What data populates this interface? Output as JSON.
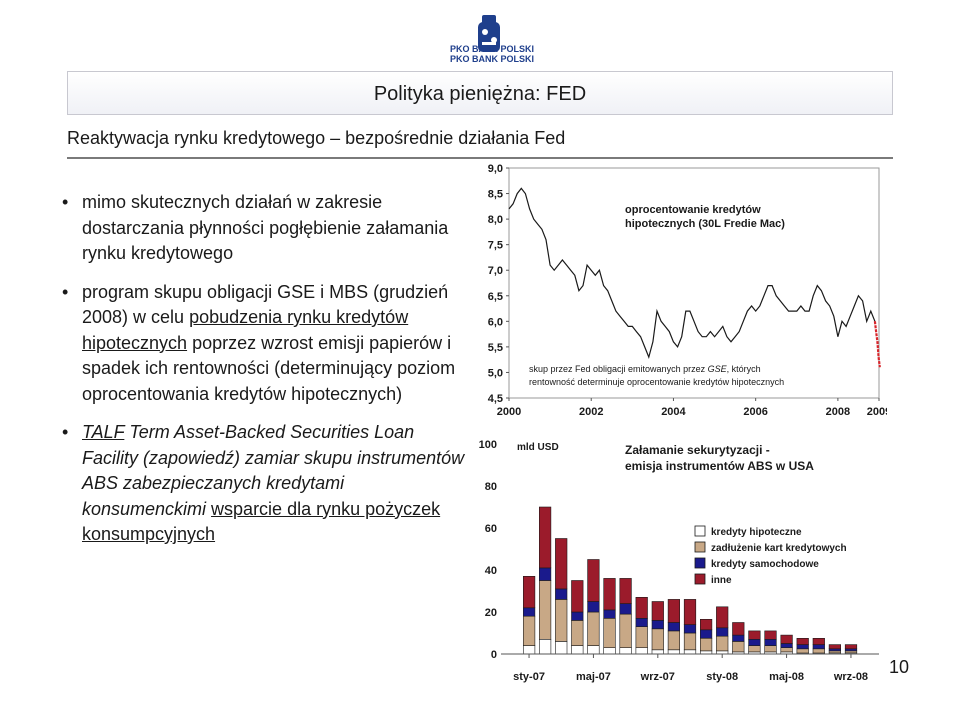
{
  "logo": {
    "line1": "PKO BANK POLSKI",
    "line2": "PKO BANK POLSKI"
  },
  "title": "Polityka pieniężna: FED",
  "subtitle": "Reaktywacja rynku kredytowego – bezpośrednie działania Fed",
  "bullets": [
    {
      "text": "mimo skutecznych działań w zakresie dostarczania płynności pogłębienie załamania rynku kredytowego"
    },
    {
      "parts": [
        "program skupu obligacji GSE i MBS (grudzień 2008) w celu ",
        "pobudzenia rynku kredytów hipotecznych",
        " poprzez wzrost emisji papierów i spadek ich rentowności (determinujący poziom oprocentowania kredytów hipotecznych)"
      ]
    },
    {
      "parts": [
        "TALF",
        " Term Asset-Backed Securities Loan Facility (zapowiedź) zamiar skupu instrumentów ABS zabezpieczanych kredytami konsumenckimi ",
        "wsparcie dla rynku pożyczek konsumpcyjnych"
      ]
    }
  ],
  "page_number": "10",
  "chart_data": [
    {
      "type": "line",
      "title": "oprocentowanie kredytów hipotecznych (30L Fredie Mac)",
      "annotation": "skup przez Fed obligacji emitowanych przez GSE, których rentowność determinuje oprocentowanie kredytów hipotecznych",
      "annotation_parts": [
        "skup przez Fed obligacji emitowanych przez ",
        "GSE",
        ", których",
        "rentowność determinuje oprocentowanie kredytów hipotecznych"
      ],
      "xlabels": [
        "2000",
        "2002",
        "2004",
        "2006",
        "2008",
        "2009"
      ],
      "xlim": [
        2000,
        2009
      ],
      "ylim": [
        4.5,
        9.0
      ],
      "yticks": [
        "9,0",
        "8,5",
        "8,0",
        "7,5",
        "7,0",
        "6,5",
        "6,0",
        "5,5",
        "5,0",
        "4,5"
      ],
      "line_color": "#1a1a1a",
      "highlight_color": "#d8262c",
      "series": [
        {
          "values": [
            [
              2000.0,
              8.2
            ],
            [
              2000.1,
              8.3
            ],
            [
              2000.2,
              8.5
            ],
            [
              2000.3,
              8.6
            ],
            [
              2000.4,
              8.5
            ],
            [
              2000.5,
              8.2
            ],
            [
              2000.6,
              8.0
            ],
            [
              2000.7,
              7.9
            ],
            [
              2000.8,
              7.8
            ],
            [
              2000.9,
              7.6
            ],
            [
              2001.0,
              7.1
            ],
            [
              2001.1,
              7.0
            ],
            [
              2001.2,
              7.1
            ],
            [
              2001.3,
              7.2
            ],
            [
              2001.4,
              7.1
            ],
            [
              2001.5,
              7.0
            ],
            [
              2001.6,
              6.9
            ],
            [
              2001.7,
              6.6
            ],
            [
              2001.8,
              6.7
            ],
            [
              2001.9,
              7.1
            ],
            [
              2002.0,
              7.0
            ],
            [
              2002.1,
              6.9
            ],
            [
              2002.2,
              7.0
            ],
            [
              2002.3,
              6.7
            ],
            [
              2002.4,
              6.6
            ],
            [
              2002.5,
              6.4
            ],
            [
              2002.6,
              6.2
            ],
            [
              2002.7,
              6.1
            ],
            [
              2002.8,
              6.0
            ],
            [
              2002.9,
              5.9
            ],
            [
              2003.0,
              5.9
            ],
            [
              2003.1,
              5.8
            ],
            [
              2003.2,
              5.7
            ],
            [
              2003.3,
              5.5
            ],
            [
              2003.4,
              5.3
            ],
            [
              2003.5,
              5.6
            ],
            [
              2003.6,
              6.2
            ],
            [
              2003.7,
              6.0
            ],
            [
              2003.8,
              5.9
            ],
            [
              2003.9,
              5.8
            ],
            [
              2004.0,
              5.6
            ],
            [
              2004.1,
              5.5
            ],
            [
              2004.2,
              5.7
            ],
            [
              2004.3,
              6.2
            ],
            [
              2004.4,
              6.2
            ],
            [
              2004.5,
              6.0
            ],
            [
              2004.6,
              5.8
            ],
            [
              2004.7,
              5.7
            ],
            [
              2004.8,
              5.7
            ],
            [
              2004.9,
              5.8
            ],
            [
              2005.0,
              5.7
            ],
            [
              2005.1,
              5.8
            ],
            [
              2005.2,
              5.9
            ],
            [
              2005.3,
              5.7
            ],
            [
              2005.4,
              5.6
            ],
            [
              2005.5,
              5.7
            ],
            [
              2005.6,
              5.8
            ],
            [
              2005.7,
              6.0
            ],
            [
              2005.8,
              6.2
            ],
            [
              2005.9,
              6.3
            ],
            [
              2006.0,
              6.2
            ],
            [
              2006.1,
              6.3
            ],
            [
              2006.2,
              6.5
            ],
            [
              2006.3,
              6.7
            ],
            [
              2006.4,
              6.7
            ],
            [
              2006.5,
              6.5
            ],
            [
              2006.6,
              6.4
            ],
            [
              2006.7,
              6.3
            ],
            [
              2006.8,
              6.2
            ],
            [
              2006.9,
              6.2
            ],
            [
              2007.0,
              6.2
            ],
            [
              2007.1,
              6.3
            ],
            [
              2007.2,
              6.2
            ],
            [
              2007.3,
              6.2
            ],
            [
              2007.4,
              6.5
            ],
            [
              2007.5,
              6.7
            ],
            [
              2007.6,
              6.6
            ],
            [
              2007.7,
              6.4
            ],
            [
              2007.8,
              6.3
            ],
            [
              2007.9,
              6.1
            ],
            [
              2008.0,
              5.7
            ],
            [
              2008.1,
              6.0
            ],
            [
              2008.2,
              5.9
            ],
            [
              2008.3,
              6.1
            ],
            [
              2008.4,
              6.3
            ],
            [
              2008.5,
              6.5
            ],
            [
              2008.6,
              6.4
            ],
            [
              2008.7,
              6.0
            ],
            [
              2008.8,
              6.2
            ],
            [
              2008.9,
              6.0
            ]
          ]
        },
        {
          "values": [
            [
              2008.9,
              6.0
            ],
            [
              2008.93,
              5.8
            ],
            [
              2008.96,
              5.6
            ],
            [
              2008.99,
              5.3
            ],
            [
              2009.02,
              5.1
            ]
          ]
        }
      ]
    },
    {
      "type": "bar",
      "title": "Załamanie sekurytyzacji - emisja instrumentów ABS w USA",
      "unit_label": "mld USD",
      "xlabels": [
        "sty-07",
        "maj-07",
        "wrz-07",
        "sty-08",
        "maj-08",
        "wrz-08"
      ],
      "ylim": [
        0,
        100
      ],
      "yticks": [
        "100",
        "80",
        "60",
        "40",
        "20",
        "0"
      ],
      "series": [
        {
          "name": "kredyty hipoteczne",
          "color": "#ffffff",
          "values": [
            4,
            7,
            6,
            4,
            4,
            3,
            3,
            3,
            2,
            2,
            2,
            1.5,
            1.5,
            1,
            1,
            1,
            1,
            0.5,
            0.5,
            0.5,
            0.5
          ]
        },
        {
          "name": "zadłużenie kart kredytowych",
          "color": "#c8a886",
          "values": [
            14,
            28,
            20,
            12,
            16,
            14,
            16,
            10,
            10,
            9,
            8,
            6,
            7,
            5,
            3,
            3,
            2,
            2,
            2,
            1,
            1
          ]
        },
        {
          "name": "kredyty samochodowe",
          "color": "#1a1a8c",
          "values": [
            4,
            6,
            5,
            4,
            5,
            4,
            5,
            4,
            4,
            4,
            4,
            4,
            4,
            3,
            3,
            3,
            2,
            2,
            2,
            1,
            1
          ]
        },
        {
          "name": "inne",
          "color": "#9b1b2b",
          "values": [
            15,
            29,
            24,
            15,
            20,
            15,
            12,
            10,
            9,
            11,
            12,
            5,
            10,
            6,
            4,
            4,
            4,
            3,
            3,
            2,
            2
          ]
        }
      ]
    }
  ]
}
